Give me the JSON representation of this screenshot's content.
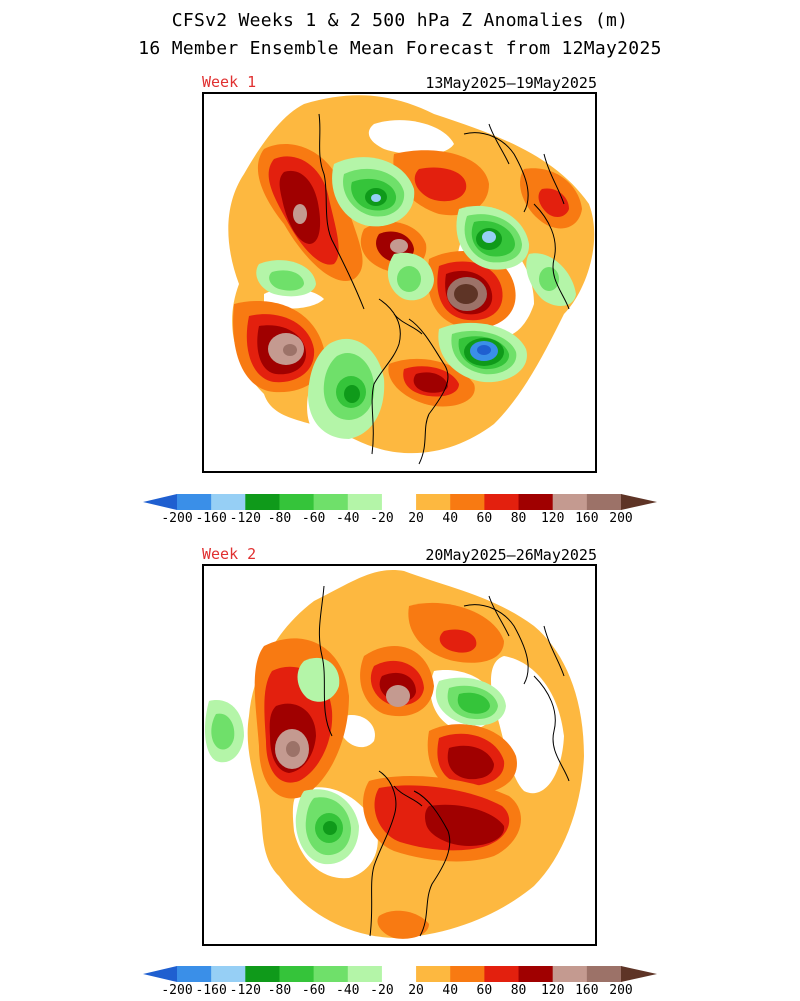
{
  "title": "CFSv2 Weeks 1 & 2 500 hPa Z Anomalies (m)",
  "subtitle": "16 Member Ensemble Mean Forecast from 12May2025",
  "panels": [
    {
      "label": "Week 1",
      "date_range": "13May2025–19May2025"
    },
    {
      "label": "Week 2",
      "date_range": "20May2025–26May2025"
    }
  ],
  "colorbar": {
    "labels": [
      "-200",
      "-160",
      "-120",
      "-80",
      "-60",
      "-40",
      "-20",
      "20",
      "40",
      "60",
      "80",
      "120",
      "160",
      "200"
    ],
    "colors": {
      "below_-200": "#1f5fd0",
      "-200_-160": "#3a8fe8",
      "-160_-120": "#96cff5",
      "-120_-80": "#0f9a1a",
      "-80_-60": "#35c43a",
      "-60_-40": "#6fe06a",
      "-40_-20": "#b4f5a8",
      "-20_20": "#ffffff",
      "20_40": "#fdb840",
      "40_60": "#f87a12",
      "60_80": "#e3200e",
      "80_120": "#a00000",
      "120_160": "#c49a90",
      "160_200": "#9c7268",
      "above_200": "#5e3426"
    }
  }
}
